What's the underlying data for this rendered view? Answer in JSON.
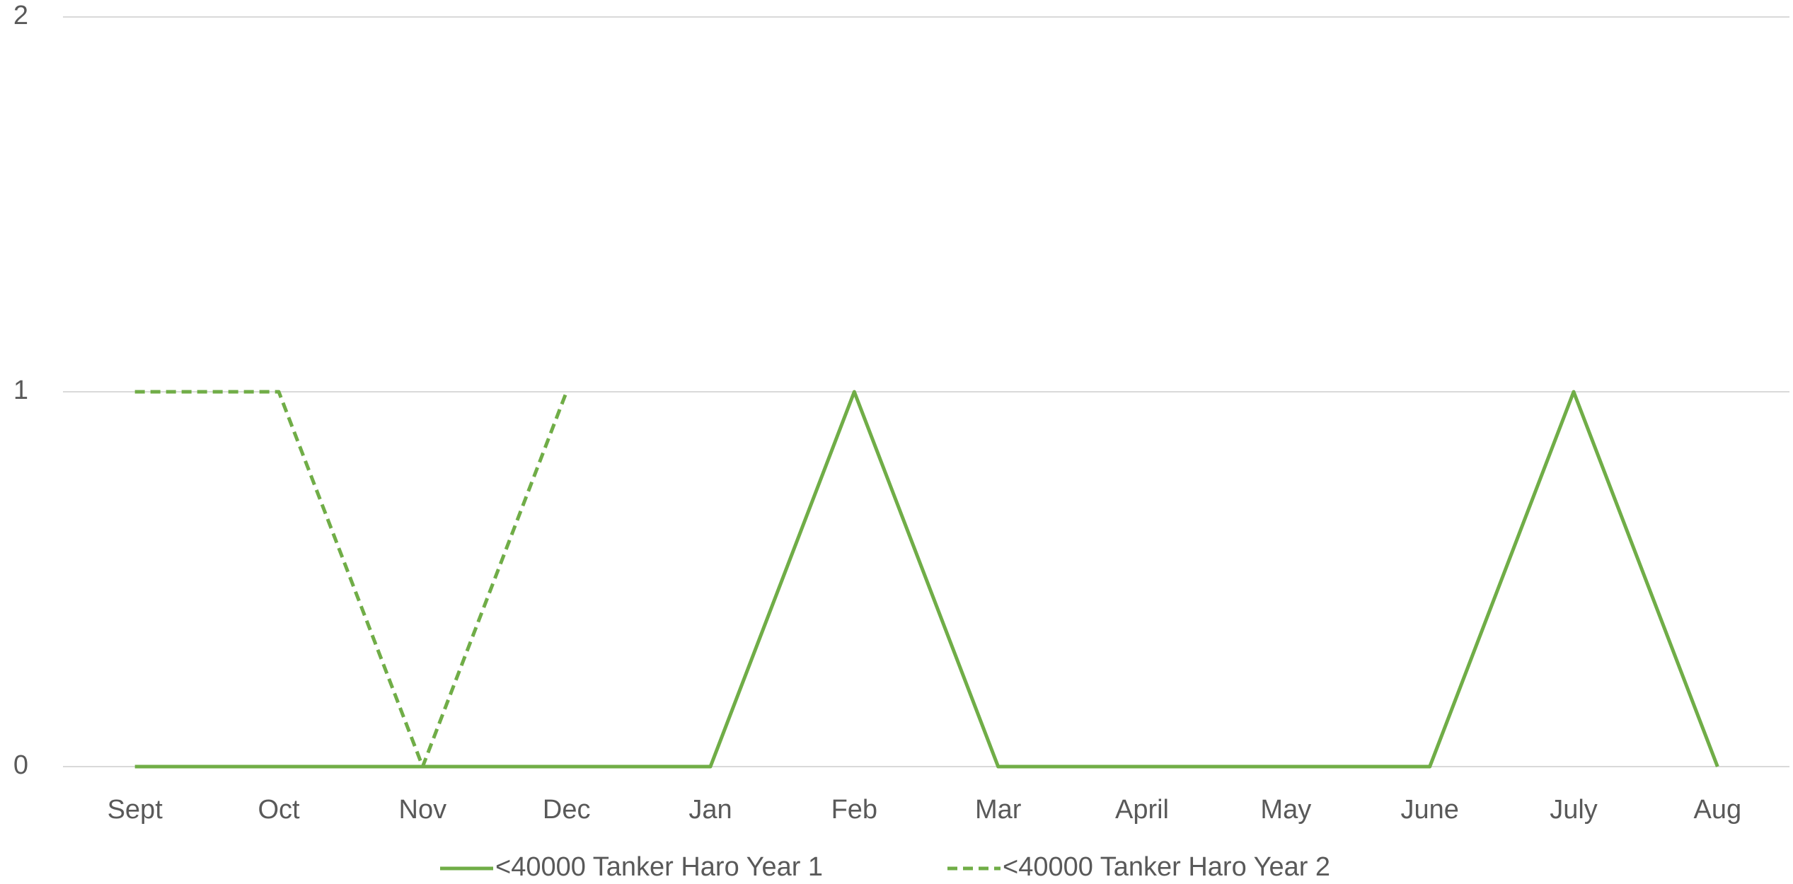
{
  "chart_data": {
    "type": "line",
    "categories": [
      "Sept",
      "Oct",
      "Nov",
      "Dec",
      "Jan",
      "Feb",
      "Mar",
      "April",
      "May",
      "June",
      "July",
      "Aug"
    ],
    "series": [
      {
        "name": "<40000 Tanker Haro Year 1",
        "color": "#70ad47",
        "dash": false,
        "values": [
          0,
          0,
          0,
          0,
          0,
          1,
          0,
          0,
          0,
          0,
          1,
          0
        ]
      },
      {
        "name": "<40000 Tanker Haro Year 2",
        "color": "#70ad47",
        "dash": true,
        "values": [
          1,
          1,
          0,
          1,
          null,
          null,
          null,
          null,
          null,
          null,
          null,
          null
        ]
      }
    ],
    "ylim": [
      0,
      2
    ],
    "yticks": [
      0,
      1,
      2
    ],
    "grid": true,
    "legend": "bottom"
  }
}
